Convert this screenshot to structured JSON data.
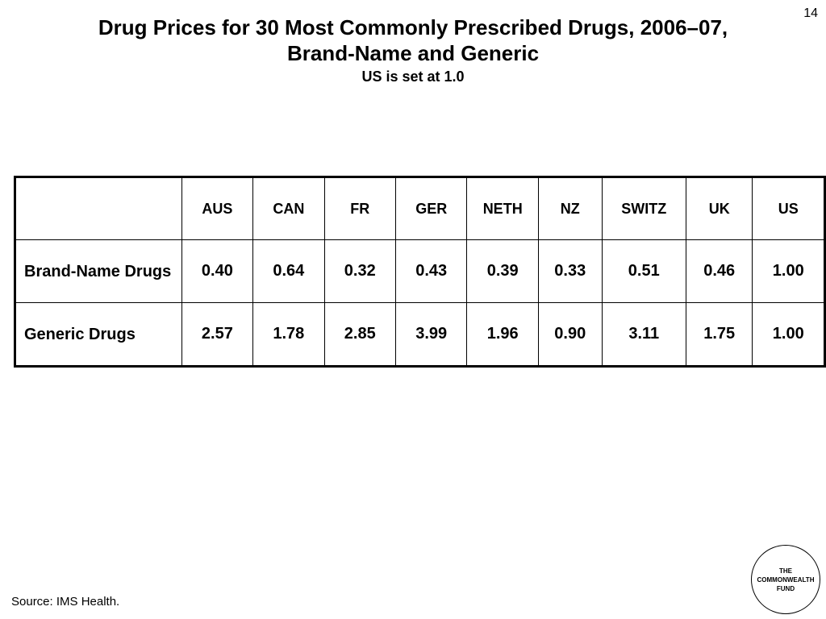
{
  "slide": {
    "page_number": "14",
    "title_line1": "Drug Prices for 30 Most Commonly Prescribed Drugs, 2006–07,",
    "title_line2": "Brand-Name and Generic",
    "subtitle": "US is set at 1.0",
    "source": "Source: IMS Health."
  },
  "table": {
    "columns": [
      "AUS",
      "CAN",
      "FR",
      "GER",
      "NETH",
      "NZ",
      "SWITZ",
      "UK",
      "US"
    ],
    "rows": [
      {
        "label": "Brand-Name Drugs",
        "values": [
          "0.40",
          "0.64",
          "0.32",
          "0.43",
          "0.39",
          "0.33",
          "0.51",
          "0.46",
          "1.00"
        ]
      },
      {
        "label": "Generic Drugs",
        "values": [
          "2.57",
          "1.78",
          "2.85",
          "3.99",
          "1.96",
          "0.90",
          "3.11",
          "1.75",
          "1.00"
        ]
      }
    ]
  },
  "chart_data": {
    "type": "table",
    "categories": [
      "AUS",
      "CAN",
      "FR",
      "GER",
      "NETH",
      "NZ",
      "SWITZ",
      "UK",
      "US"
    ],
    "series": [
      {
        "name": "Brand-Name Drugs",
        "values": [
          0.4,
          0.64,
          0.32,
          0.43,
          0.39,
          0.33,
          0.51,
          0.46,
          1.0
        ]
      },
      {
        "name": "Generic Drugs",
        "values": [
          2.57,
          1.78,
          2.85,
          3.99,
          1.96,
          0.9,
          3.11,
          1.75,
          1.0
        ]
      }
    ],
    "title": "Drug Prices for 30 Most Commonly Prescribed Drugs, 2006–07, Brand-Name and Generic",
    "subtitle": "US is set at 1.0"
  },
  "logo": {
    "line1": "THE",
    "line2": "COMMONWEALTH",
    "line3": "FUND"
  }
}
